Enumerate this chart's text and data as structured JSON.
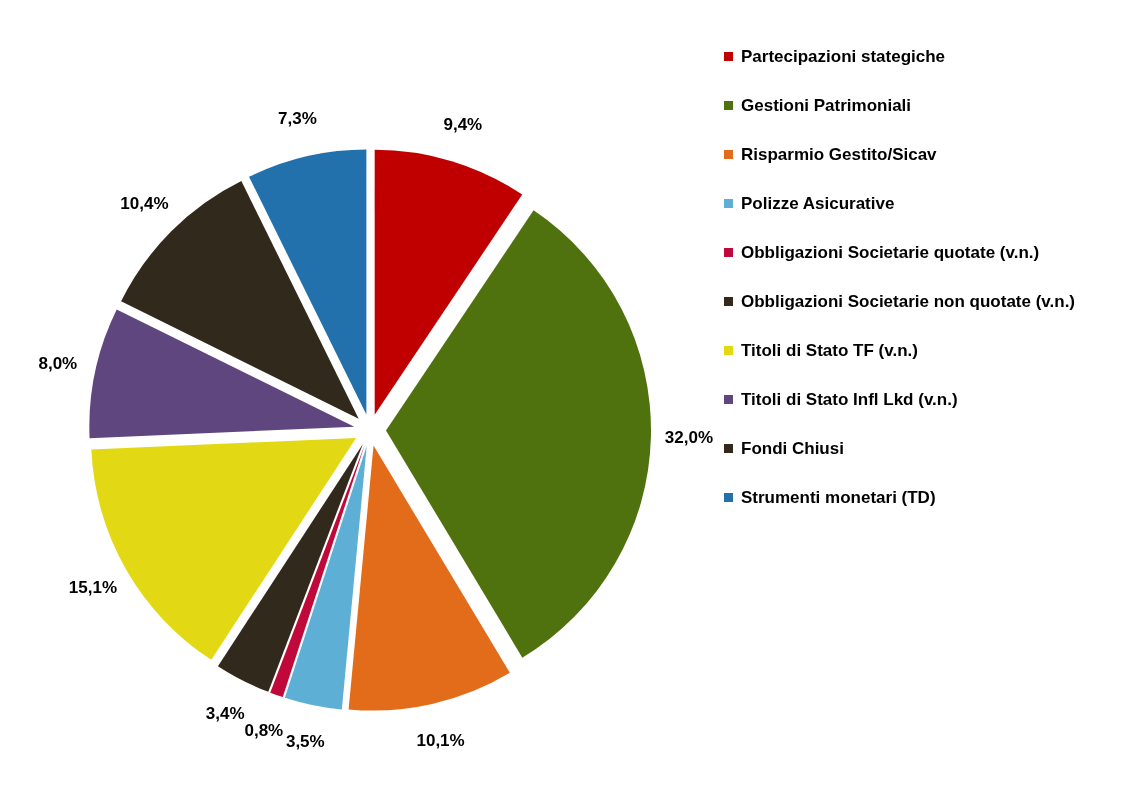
{
  "chart_data": {
    "type": "pie",
    "categories": [
      "Partecipazioni stategiche",
      "Gestioni Patrimoniali",
      "Risparmio Gestito/Sicav",
      "Polizze Asicurative",
      "Obbligazioni Societarie quotate (v.n.)",
      "Obbligazioni Societarie non quotate (v.n.)",
      "Titoli di Stato TF (v.n.)",
      "Titoli di Stato Infl Lkd (v.n.)",
      "Fondi Chiusi",
      "Strumenti monetari (TD)"
    ],
    "values": [
      9.4,
      32.0,
      10.1,
      3.5,
      0.8,
      3.4,
      15.1,
      8.0,
      10.4,
      7.3
    ],
    "colors": [
      "#c00000",
      "#4f720e",
      "#e36c1a",
      "#5eafd6",
      "#c0093a",
      "#30291c",
      "#e2d914",
      "#5f467f",
      "#30291c",
      "#2271ad"
    ],
    "value_labels": [
      "9,4%",
      "32,0%",
      "10,1%",
      "3,5%",
      "0,8%",
      "3,4%",
      "15,1%",
      "8,0%",
      "10,4%",
      "7,3%"
    ],
    "legend": "right"
  }
}
